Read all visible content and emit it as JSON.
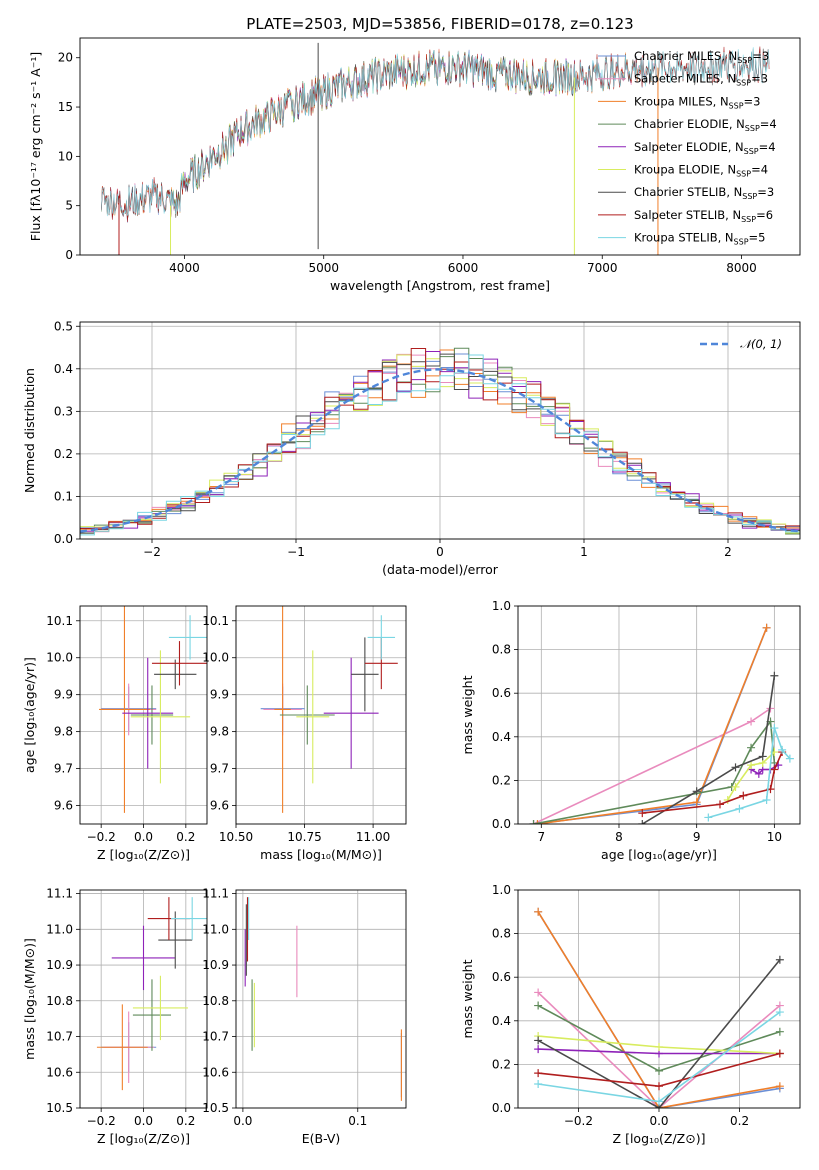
{
  "title": "PLATE=2503, MJD=53856, FIBERID=0178, z=0.123",
  "colors": {
    "chabrier_miles": "#6b8fd6",
    "salpeter_miles": "#e98bbd",
    "kroupa_miles": "#f07f2a",
    "chabrier_elodie": "#5f8a5a",
    "salpeter_elodie": "#8e22b8",
    "kroupa_elodie": "#d8ec5f",
    "chabrier_stelib": "#4a4a4a",
    "salpeter_stelib": "#b01e1e",
    "kroupa_stelib": "#7ad6e3",
    "normal": "#4f86d9",
    "grid": "#b0b0b0"
  },
  "chart_data": [
    {
      "id": "spectrum",
      "type": "line",
      "xlabel": "wavelength [Angstrom, rest frame]",
      "ylabel": "Flux [fλ10⁻¹⁷ erg cm⁻² s⁻¹ A⁻¹]",
      "xlim": [
        3250,
        8420
      ],
      "ylim": [
        0,
        22
      ],
      "xticks": [
        "4000",
        "5000",
        "6000",
        "7000",
        "8000"
      ],
      "yticks": [
        "0",
        "5",
        "10",
        "15",
        "20"
      ],
      "x_anchor": [
        3400,
        3600,
        3800,
        3950,
        4000,
        4100,
        4200,
        4300,
        4400,
        4600,
        4800,
        5000,
        5200,
        5500,
        5800,
        6000,
        6200,
        6500,
        6800,
        7000,
        7300,
        7600,
        8000,
        8200
      ],
      "y_anchor": [
        5.5,
        5.2,
        6.0,
        5.0,
        7.5,
        8.5,
        10.0,
        11.0,
        12.5,
        14.0,
        15.5,
        16.5,
        17.5,
        18.5,
        19.0,
        19.0,
        18.5,
        18.0,
        18.0,
        18.5,
        19.0,
        19.0,
        19.5,
        19.0
      ],
      "legend": [
        "Chabrier MILES, N_SSP=3",
        "Salpeter MILES, N_SSP=3",
        "Kroupa MILES, N_SSP=3",
        "Chabrier ELODIE, N_SSP=4",
        "Salpeter ELODIE, N_SSP=4",
        "Kroupa ELODIE, N_SSP=4",
        "Chabrier STELIB, N_SSP=3",
        "Salpeter STELIB, N_SSP=6",
        "Kroupa STELIB, N_SSP=5"
      ],
      "legend_colors": [
        "chabrier_miles",
        "salpeter_miles",
        "kroupa_miles",
        "chabrier_elodie",
        "salpeter_elodie",
        "kroupa_elodie",
        "chabrier_stelib",
        "salpeter_stelib",
        "kroupa_stelib"
      ],
      "legend_placement": "upper right",
      "grid": false,
      "models": [
        {
          "color": "chabrier_miles",
          "xmin": 3400,
          "xmax": 7400
        },
        {
          "color": "salpeter_miles",
          "xmin": 3400,
          "xmax": 7400
        },
        {
          "color": "kroupa_miles",
          "xmin": 3400,
          "xmax": 7400
        },
        {
          "color": "chabrier_elodie",
          "xmin": 3900,
          "xmax": 6800
        },
        {
          "color": "salpeter_elodie",
          "xmin": 3900,
          "xmax": 6800
        },
        {
          "color": "kroupa_elodie",
          "xmin": 3900,
          "xmax": 6800
        },
        {
          "color": "chabrier_stelib",
          "xmin": 3400,
          "xmax": 8200
        },
        {
          "color": "salpeter_stelib",
          "xmin": 3400,
          "xmax": 8200
        },
        {
          "color": "kroupa_stelib",
          "xmin": 3400,
          "xmax": 8200
        }
      ],
      "spikes": [
        {
          "x": 4960,
          "y0": 0.6,
          "y1": 21.5,
          "color": "chabrier_stelib"
        },
        {
          "x": 6800,
          "y0": 0,
          "y1": 18,
          "color": "kroupa_elodie"
        },
        {
          "x": 7400,
          "y0": 0,
          "y1": 19,
          "color": "kroupa_miles"
        },
        {
          "x": 3530,
          "y0": 0,
          "y1": 6,
          "color": "salpeter_stelib"
        },
        {
          "x": 3900,
          "y0": 0,
          "y1": 5,
          "color": "kroupa_elodie"
        }
      ]
    },
    {
      "id": "residuals",
      "type": "line",
      "xlabel": "(data-model)/error",
      "ylabel": "Normed distribution",
      "xlim": [
        -2.5,
        2.5
      ],
      "ylim": [
        0,
        0.51
      ],
      "xticks": [
        "−2",
        "−1",
        "0",
        "1",
        "2"
      ],
      "yticks": [
        "0.0",
        "0.1",
        "0.2",
        "0.3",
        "0.4",
        "0.5"
      ],
      "legend": [
        "𝒩(0, 1)"
      ],
      "legend_placement": "upper right",
      "grid": true,
      "bin_width": 0.1,
      "bin_start": -2.5,
      "histograms": [
        {
          "color": "chabrier_miles",
          "seed": 1
        },
        {
          "color": "salpeter_miles",
          "seed": 2
        },
        {
          "color": "kroupa_miles",
          "seed": 3
        },
        {
          "color": "chabrier_elodie",
          "seed": 4
        },
        {
          "color": "salpeter_elodie",
          "seed": 5
        },
        {
          "color": "kroupa_elodie",
          "seed": 6
        },
        {
          "color": "chabrier_stelib",
          "seed": 7
        },
        {
          "color": "salpeter_stelib",
          "seed": 8
        },
        {
          "color": "kroupa_stelib",
          "seed": 9
        }
      ]
    },
    {
      "id": "age_vs_Z",
      "type": "scatter",
      "xlabel": "Z [log₁₀(Z/Z⊙)]",
      "ylabel": "age  [log₁₀(age/yr)]",
      "xlim": [
        -0.3,
        0.3
      ],
      "ylim": [
        9.55,
        10.14
      ],
      "xticks": [
        "−0.2",
        "0.0",
        "0.2"
      ],
      "yticks": [
        "9.6",
        "9.7",
        "9.8",
        "9.9",
        "10.0",
        "10.1"
      ],
      "grid": true,
      "points": [
        {
          "color": "chabrier_miles",
          "x": -0.07,
          "xerr": 0.13,
          "y": 9.862,
          "yerr": 0.06
        },
        {
          "color": "salpeter_miles",
          "x": -0.07,
          "xerr": 0.13,
          "y": 9.86,
          "yerr": 0.07
        },
        {
          "color": "kroupa_miles",
          "x": -0.09,
          "xerr": 0.12,
          "y": 9.86,
          "yerr": 0.28
        },
        {
          "color": "chabrier_elodie",
          "x": 0.04,
          "xerr": 0.1,
          "y": 9.845,
          "yerr": 0.08
        },
        {
          "color": "salpeter_elodie",
          "x": 0.02,
          "xerr": 0.12,
          "y": 9.85,
          "yerr": 0.15
        },
        {
          "color": "kroupa_elodie",
          "x": 0.08,
          "xerr": 0.14,
          "y": 9.84,
          "yerr": 0.18
        },
        {
          "color": "chabrier_stelib",
          "x": 0.15,
          "xerr": 0.1,
          "y": 9.955,
          "yerr": 0.04
        },
        {
          "color": "salpeter_stelib",
          "x": 0.17,
          "xerr": 0.13,
          "y": 9.985,
          "yerr": 0.06
        },
        {
          "color": "kroupa_stelib",
          "x": 0.22,
          "xerr": 0.1,
          "y": 10.055,
          "yerr": 0.06
        }
      ]
    },
    {
      "id": "age_vs_mass",
      "type": "scatter",
      "xlabel": "mass [log₁₀(M/M⊙)]",
      "ylabel": "",
      "xlim": [
        10.5,
        11.12
      ],
      "ylim": [
        9.55,
        10.14
      ],
      "xticks": [
        "10.50",
        "10.75",
        "11.00"
      ],
      "yticks": [
        "9.6",
        "9.7",
        "9.8",
        "9.9",
        "10.0",
        "10.1"
      ],
      "grid": true,
      "points": [
        {
          "color": "chabrier_miles",
          "x": 10.67,
          "xerr": 0.08,
          "y": 9.862,
          "yerr": 0.06
        },
        {
          "color": "salpeter_miles",
          "x": 10.67,
          "xerr": 0.07,
          "y": 9.86,
          "yerr": 0.07
        },
        {
          "color": "kroupa_miles",
          "x": 10.67,
          "xerr": 0.03,
          "y": 9.86,
          "yerr": 0.28
        },
        {
          "color": "chabrier_elodie",
          "x": 10.76,
          "xerr": 0.1,
          "y": 9.845,
          "yerr": 0.08
        },
        {
          "color": "salpeter_elodie",
          "x": 10.92,
          "xerr": 0.1,
          "y": 9.85,
          "yerr": 0.15
        },
        {
          "color": "kroupa_elodie",
          "x": 10.78,
          "xerr": 0.06,
          "y": 9.84,
          "yerr": 0.18
        },
        {
          "color": "chabrier_stelib",
          "x": 10.97,
          "xerr": 0.05,
          "y": 9.955,
          "yerr": 0.1
        },
        {
          "color": "salpeter_stelib",
          "x": 11.03,
          "xerr": 0.06,
          "y": 9.985,
          "yerr": 0.07
        },
        {
          "color": "kroupa_stelib",
          "x": 11.03,
          "xerr": 0.05,
          "y": 10.055,
          "yerr": 0.06
        }
      ]
    },
    {
      "id": "weight_vs_age",
      "type": "line",
      "xlabel": "age  [log₁₀(age/yr)]",
      "ylabel": "mass weight",
      "xlim": [
        6.7,
        10.33
      ],
      "ylim": [
        0,
        1.0
      ],
      "xticks": [
        "7",
        "8",
        "9",
        "10"
      ],
      "yticks": [
        "0.0",
        "0.2",
        "0.4",
        "0.6",
        "0.8",
        "1.0"
      ],
      "grid": true,
      "series": [
        {
          "color": "chabrier_miles",
          "x": [
            6.9,
            9.0,
            9.9
          ],
          "y": [
            0.0,
            0.09,
            0.9
          ]
        },
        {
          "color": "salpeter_miles",
          "x": [
            6.9,
            9.7,
            9.95
          ],
          "y": [
            0.0,
            0.47,
            0.53
          ]
        },
        {
          "color": "kroupa_miles",
          "x": [
            6.95,
            9.0,
            9.9
          ],
          "y": [
            0.0,
            0.1,
            0.9
          ]
        },
        {
          "color": "chabrier_elodie",
          "x": [
            6.9,
            9.45,
            9.7,
            9.95,
            10.0
          ],
          "y": [
            0.0,
            0.17,
            0.35,
            0.47,
            0.28
          ]
        },
        {
          "color": "salpeter_elodie",
          "x": [
            9.7,
            9.8,
            9.85,
            9.95,
            10.05
          ],
          "y": [
            0.25,
            0.23,
            0.25,
            0.25,
            0.27
          ]
        },
        {
          "color": "kroupa_elodie",
          "x": [
            9.4,
            9.5,
            9.7,
            9.85,
            10.0
          ],
          "y": [
            0.11,
            0.17,
            0.27,
            0.28,
            0.33
          ]
        },
        {
          "color": "chabrier_stelib",
          "x": [
            8.3,
            9.0,
            9.5,
            9.85,
            10.0
          ],
          "y": [
            0.0,
            0.15,
            0.26,
            0.31,
            0.68
          ]
        },
        {
          "color": "salpeter_stelib",
          "x": [
            8.3,
            9.3,
            9.6,
            9.95,
            10.0,
            10.1
          ],
          "y": [
            0.05,
            0.09,
            0.13,
            0.16,
            0.25,
            0.33
          ]
        },
        {
          "color": "kroupa_stelib",
          "x": [
            9.15,
            9.55,
            9.9,
            10.0,
            10.1,
            10.2
          ],
          "y": [
            0.03,
            0.07,
            0.11,
            0.44,
            0.34,
            0.3
          ]
        }
      ]
    },
    {
      "id": "mass_vs_Z",
      "type": "scatter",
      "xlabel": "Z [log₁₀(Z/Z⊙)]",
      "ylabel": "mass [log₁₀(M/M⊙)]",
      "xlim": [
        -0.3,
        0.3
      ],
      "ylim": [
        10.5,
        11.11
      ],
      "xticks": [
        "−0.2",
        "0.0",
        "0.2"
      ],
      "yticks": [
        "10.5",
        "10.6",
        "10.7",
        "10.8",
        "10.9",
        "11.0",
        "11.1"
      ],
      "grid": true,
      "points": [
        {
          "color": "chabrier_miles",
          "x": -0.07,
          "xerr": 0.13,
          "y": 10.67,
          "yerr": 0.07
        },
        {
          "color": "salpeter_miles",
          "x": -0.07,
          "xerr": 0.12,
          "y": 10.67,
          "yerr": 0.1
        },
        {
          "color": "kroupa_miles",
          "x": -0.1,
          "xerr": 0.12,
          "y": 10.67,
          "yerr": 0.12
        },
        {
          "color": "chabrier_elodie",
          "x": 0.04,
          "xerr": 0.09,
          "y": 10.76,
          "yerr": 0.1
        },
        {
          "color": "salpeter_elodie",
          "x": 0.0,
          "xerr": 0.15,
          "y": 10.92,
          "yerr": 0.09
        },
        {
          "color": "kroupa_elodie",
          "x": 0.08,
          "xerr": 0.13,
          "y": 10.78,
          "yerr": 0.09
        },
        {
          "color": "chabrier_stelib",
          "x": 0.15,
          "xerr": 0.08,
          "y": 10.97,
          "yerr": 0.08
        },
        {
          "color": "salpeter_stelib",
          "x": 0.12,
          "xerr": 0.1,
          "y": 11.03,
          "yerr": 0.06
        },
        {
          "color": "kroupa_stelib",
          "x": 0.23,
          "xerr": 0.1,
          "y": 11.03,
          "yerr": 0.06
        }
      ]
    },
    {
      "id": "mass_vs_ebv",
      "type": "scatter",
      "xlabel": "E(B-V)",
      "ylabel": "",
      "xlim": [
        -0.006,
        0.142
      ],
      "ylim": [
        10.5,
        11.11
      ],
      "xticks": [
        "0.0",
        "0.1"
      ],
      "yticks": [
        "10.5",
        "10.6",
        "10.7",
        "10.8",
        "10.9",
        "11.0",
        "11.1"
      ],
      "grid": true,
      "points": [
        {
          "color": "chabrier_miles",
          "x": 0.138,
          "xerr": 0.0,
          "y": 10.62,
          "yerr": 0.09
        },
        {
          "color": "salpeter_miles",
          "x": 0.047,
          "xerr": 0.0,
          "y": 10.91,
          "yerr": 0.1
        },
        {
          "color": "kroupa_miles",
          "x": 0.138,
          "xerr": 0.0,
          "y": 10.62,
          "yerr": 0.1
        },
        {
          "color": "chabrier_elodie",
          "x": 0.008,
          "xerr": 0.0,
          "y": 10.76,
          "yerr": 0.1
        },
        {
          "color": "salpeter_elodie",
          "x": 0.002,
          "xerr": 0.0,
          "y": 10.92,
          "yerr": 0.08
        },
        {
          "color": "kroupa_elodie",
          "x": 0.01,
          "xerr": 0.0,
          "y": 10.76,
          "yerr": 0.09
        },
        {
          "color": "chabrier_stelib",
          "x": 0.003,
          "xerr": 0.0,
          "y": 10.97,
          "yerr": 0.1
        },
        {
          "color": "salpeter_stelib",
          "x": 0.004,
          "xerr": 0.0,
          "y": 11.0,
          "yerr": 0.09
        },
        {
          "color": "kroupa_stelib",
          "x": 0.005,
          "xerr": 0.0,
          "y": 11.03,
          "yerr": 0.06
        }
      ]
    },
    {
      "id": "weight_vs_Z",
      "type": "line",
      "xlabel": "Z [log₁₀(Z/Z⊙)]",
      "ylabel": "mass weight",
      "xlim": [
        -0.35,
        0.35
      ],
      "ylim": [
        0,
        1.0
      ],
      "xticks": [
        "−0.2",
        "0.0",
        "0.2"
      ],
      "yticks": [
        "0.0",
        "0.2",
        "0.4",
        "0.6",
        "0.8",
        "1.0"
      ],
      "grid": true,
      "series": [
        {
          "color": "chabrier_miles",
          "x": [
            -0.3,
            0.0,
            0.3
          ],
          "y": [
            0.9,
            0.0,
            0.09
          ]
        },
        {
          "color": "salpeter_miles",
          "x": [
            -0.3,
            0.0,
            0.3
          ],
          "y": [
            0.53,
            0.0,
            0.47
          ]
        },
        {
          "color": "kroupa_miles",
          "x": [
            -0.3,
            0.0,
            0.3
          ],
          "y": [
            0.9,
            0.0,
            0.1
          ]
        },
        {
          "color": "chabrier_elodie",
          "x": [
            -0.3,
            0.0,
            0.3
          ],
          "y": [
            0.47,
            0.17,
            0.35
          ]
        },
        {
          "color": "salpeter_elodie",
          "x": [
            -0.3,
            0.0,
            0.3
          ],
          "y": [
            0.27,
            0.25,
            0.25
          ]
        },
        {
          "color": "kroupa_elodie",
          "x": [
            -0.3,
            0.0,
            0.3
          ],
          "y": [
            0.33,
            0.28,
            0.25
          ]
        },
        {
          "color": "chabrier_stelib",
          "x": [
            -0.3,
            0.0,
            0.3
          ],
          "y": [
            0.31,
            0.0,
            0.68
          ]
        },
        {
          "color": "salpeter_stelib",
          "x": [
            -0.3,
            0.0,
            0.3
          ],
          "y": [
            0.16,
            0.1,
            0.25
          ]
        },
        {
          "color": "kroupa_stelib",
          "x": [
            -0.3,
            0.0,
            0.3
          ],
          "y": [
            0.11,
            0.03,
            0.44
          ]
        }
      ]
    }
  ]
}
